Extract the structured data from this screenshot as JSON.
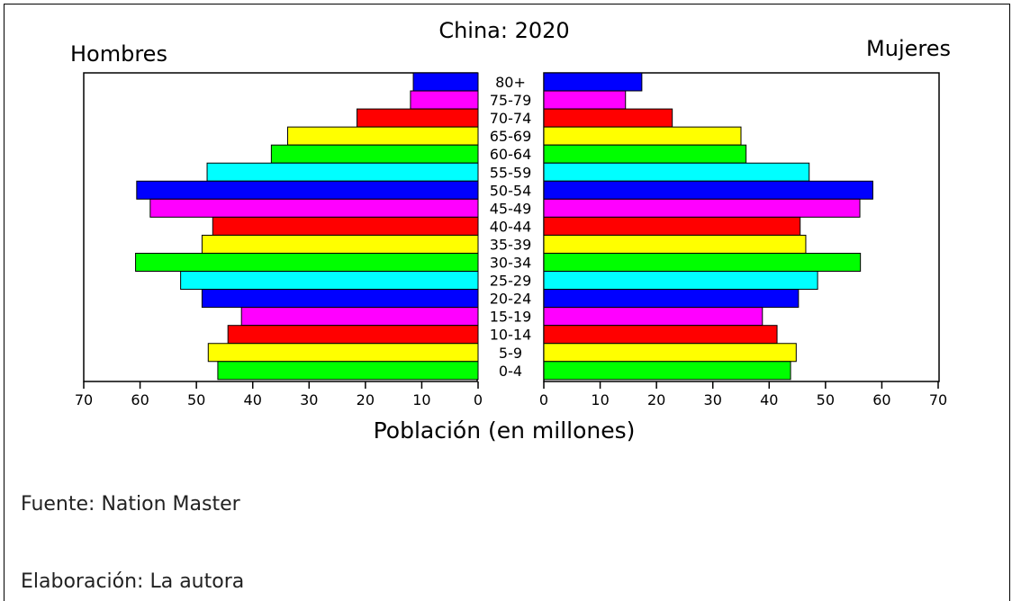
{
  "chart_data": {
    "type": "bar",
    "orientation": "horizontal",
    "title": "China: 2020",
    "left_label": "Hombres",
    "right_label": "Mujeres",
    "xlabel": "Población (en millones)",
    "xlim": [
      0,
      70
    ],
    "xticks": [
      "70",
      "60",
      "50",
      "40",
      "30",
      "20",
      "10",
      "0"
    ],
    "xticks_right": [
      "0",
      "10",
      "20",
      "30",
      "40",
      "50",
      "60",
      "70"
    ],
    "categories": [
      "80+",
      "75-79",
      "70-74",
      "65-69",
      "60-64",
      "55-59",
      "50-54",
      "45-49",
      "40-44",
      "35-39",
      "30-34",
      "25-29",
      "20-24",
      "15-19",
      "10-14",
      "5-9",
      "0-4"
    ],
    "series": [
      {
        "values": [
          11.5,
          12,
          21.5,
          33.8,
          36.7,
          48.1,
          60.6,
          58.2,
          47.1,
          49,
          60.8,
          52.8,
          49,
          42,
          44.4,
          47.9,
          46.2
        ]
      },
      {
        "values": [
          17.4,
          14.5,
          22.8,
          35,
          35.9,
          47.1,
          58.4,
          56.1,
          45.5,
          46.5,
          56.2,
          48.6,
          45.2,
          38.8,
          41.4,
          44.8,
          43.8
        ]
      }
    ],
    "colors": [
      "#0000ff",
      "#ff00ff",
      "#ff0000",
      "#ffff00",
      "#00ff00",
      "#00ffff",
      "#0000ff",
      "#ff00ff",
      "#ff0000",
      "#ffff00",
      "#00ff00",
      "#00ffff",
      "#0000ff",
      "#ff00ff",
      "#ff0000",
      "#ffff00",
      "#00ff00"
    ]
  },
  "notes": {
    "source": "Fuente: Nation Master",
    "author": "Elaboración: La autora"
  }
}
